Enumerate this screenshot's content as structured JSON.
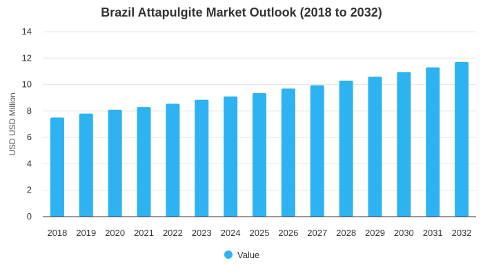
{
  "chart_data": {
    "type": "bar",
    "title": "Brazil Attapulgite Market Outlook (2018 to 2032)",
    "xlabel": "",
    "ylabel": "USD USD Million",
    "ylim": [
      0,
      14
    ],
    "yticks": [
      0,
      2,
      4,
      6,
      8,
      10,
      12,
      14
    ],
    "categories": [
      "2018",
      "2019",
      "2020",
      "2021",
      "2022",
      "2023",
      "2024",
      "2025",
      "2026",
      "2027",
      "2028",
      "2029",
      "2030",
      "2031",
      "2032"
    ],
    "series": [
      {
        "name": "Value",
        "color": "#2db2f2",
        "values": [
          7.5,
          7.8,
          8.1,
          8.3,
          8.55,
          8.85,
          9.1,
          9.35,
          9.7,
          9.95,
          10.3,
          10.6,
          10.95,
          11.3,
          11.7
        ]
      }
    ],
    "grid": true,
    "legend_position": "bottom"
  }
}
